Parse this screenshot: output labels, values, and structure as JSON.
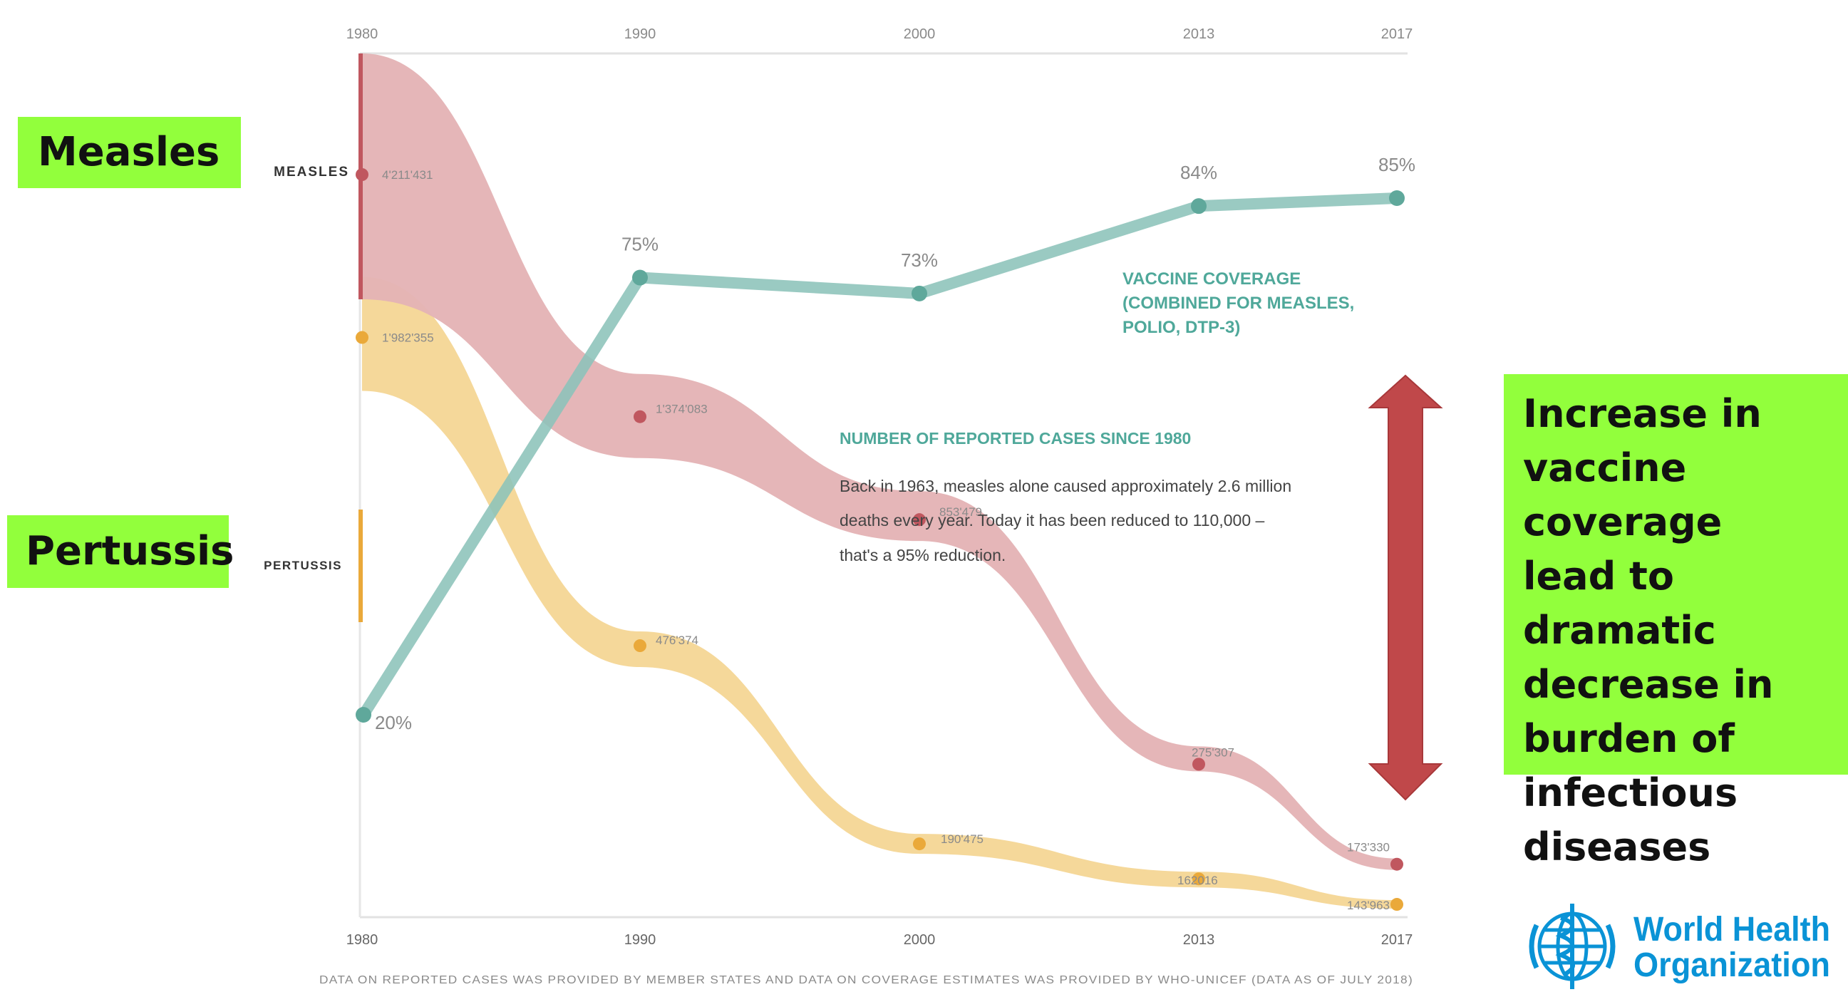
{
  "chart_data": {
    "type": "line",
    "x": [
      "1980",
      "1990",
      "2000",
      "2013",
      "2017"
    ],
    "top_axis_labels": [
      "1980",
      "1990",
      "2000",
      "2013",
      "2017"
    ],
    "bottom_axis_labels": [
      "1980",
      "1990",
      "2000",
      "2013",
      "2017"
    ],
    "series": [
      {
        "name": "MEASLES",
        "color": "#c0575f",
        "band_color": "#e4b3b5",
        "values": [
          4211431,
          1374083,
          853479,
          275307,
          173330
        ],
        "labels": [
          "4'211'431",
          "1'374'083",
          "853'479",
          "275'307",
          "173'330"
        ]
      },
      {
        "name": "PERTUSSIS",
        "color": "#eaa93a",
        "band_color": "#f5d89a",
        "values": [
          1982355,
          476374,
          190475,
          162016,
          143963
        ],
        "labels": [
          "1'982'355",
          "476'374",
          "190'475",
          "162016",
          "143'963"
        ]
      },
      {
        "name": "VACCINE COVERAGE",
        "color": "#5fa89b",
        "line_color": "#8cc3ba",
        "values": [
          20,
          75,
          73,
          84,
          85
        ],
        "labels": [
          "20%",
          "75%",
          "73%",
          "84%",
          "85%"
        ],
        "annotation": [
          "VACCINE COVERAGE",
          "(COMBINED FOR MEASLES,",
          "POLIO, DTP-3)"
        ]
      }
    ],
    "center_title": "NUMBER OF REPORTED CASES SINCE 1980",
    "center_text": [
      "Back in 1963, measles alone caused approximately 2.6 million",
      "deaths every year. Today it has been reduced to 110,000 –",
      "that's a 95% reduction."
    ],
    "footnote": "DATA ON REPORTED CASES WAS PROVIDED BY MEMBER STATES AND DATA ON COVERAGE ESTIMATES WAS PROVIDED BY WHO-UNICEF (DATA AS OF JULY 2018)"
  },
  "callouts": {
    "measles": "Measles",
    "pertussis": "Pertussis",
    "message": [
      "Increase in",
      "vaccine coverage",
      "lead to dramatic",
      "decrease in",
      "burden of",
      "infectious",
      "diseases"
    ]
  },
  "logo": {
    "name": "world-health-organization-logo",
    "text_lines": [
      "World Health",
      "Organization"
    ],
    "color": "#0a93d6"
  },
  "arrow_color": "#c0484a"
}
